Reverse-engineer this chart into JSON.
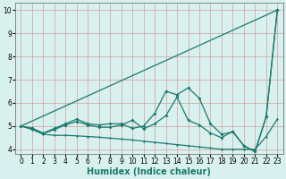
{
  "x": [
    0,
    1,
    2,
    3,
    4,
    5,
    6,
    7,
    8,
    9,
    10,
    11,
    12,
    13,
    14,
    15,
    16,
    17,
    18,
    19,
    20,
    21,
    22,
    23
  ],
  "line_diag_y": [
    5.0,
    5.217,
    5.435,
    5.652,
    5.87,
    6.087,
    6.304,
    6.522,
    6.739,
    6.957,
    7.174,
    7.391,
    7.609,
    7.826,
    8.043,
    8.261,
    8.478,
    8.696,
    8.913,
    9.13,
    9.348,
    9.565,
    9.783,
    10.0
  ],
  "line1": [
    5.0,
    4.9,
    4.7,
    4.9,
    5.1,
    5.3,
    5.1,
    5.05,
    5.1,
    5.1,
    4.9,
    5.0,
    5.55,
    6.5,
    6.35,
    6.65,
    6.2,
    5.1,
    4.65,
    4.75,
    4.15,
    3.9,
    5.4,
    10.0
  ],
  "line2": [
    5.0,
    4.9,
    4.68,
    4.85,
    5.05,
    5.2,
    5.05,
    4.95,
    4.95,
    5.05,
    5.25,
    4.88,
    5.1,
    5.45,
    6.25,
    5.25,
    5.05,
    4.7,
    4.5,
    4.78,
    4.15,
    3.9,
    5.4,
    10.0
  ],
  "line3": [
    5.0,
    4.85,
    4.65,
    4.6,
    4.6,
    4.58,
    4.55,
    4.52,
    4.48,
    4.44,
    4.4,
    4.35,
    4.3,
    4.25,
    4.2,
    4.15,
    4.1,
    4.05,
    4.0,
    4.0,
    4.0,
    4.0,
    4.55,
    5.3
  ],
  "bg_color": "#d8f0ee",
  "line_color": "#1a7a6e",
  "grid_color_h": "#d0a0a0",
  "grid_color_v": "#d0a0a0",
  "xlabel": "Humidex (Indice chaleur)",
  "xlim": [
    -0.5,
    23.5
  ],
  "ylim": [
    3.8,
    10.3
  ],
  "yticks": [
    4,
    5,
    6,
    7,
    8,
    9,
    10
  ],
  "xticks": [
    0,
    1,
    2,
    3,
    4,
    5,
    6,
    7,
    8,
    9,
    10,
    11,
    12,
    13,
    14,
    15,
    16,
    17,
    18,
    19,
    20,
    21,
    22,
    23
  ],
  "tick_fontsize": 5.5,
  "xlabel_fontsize": 7.0
}
